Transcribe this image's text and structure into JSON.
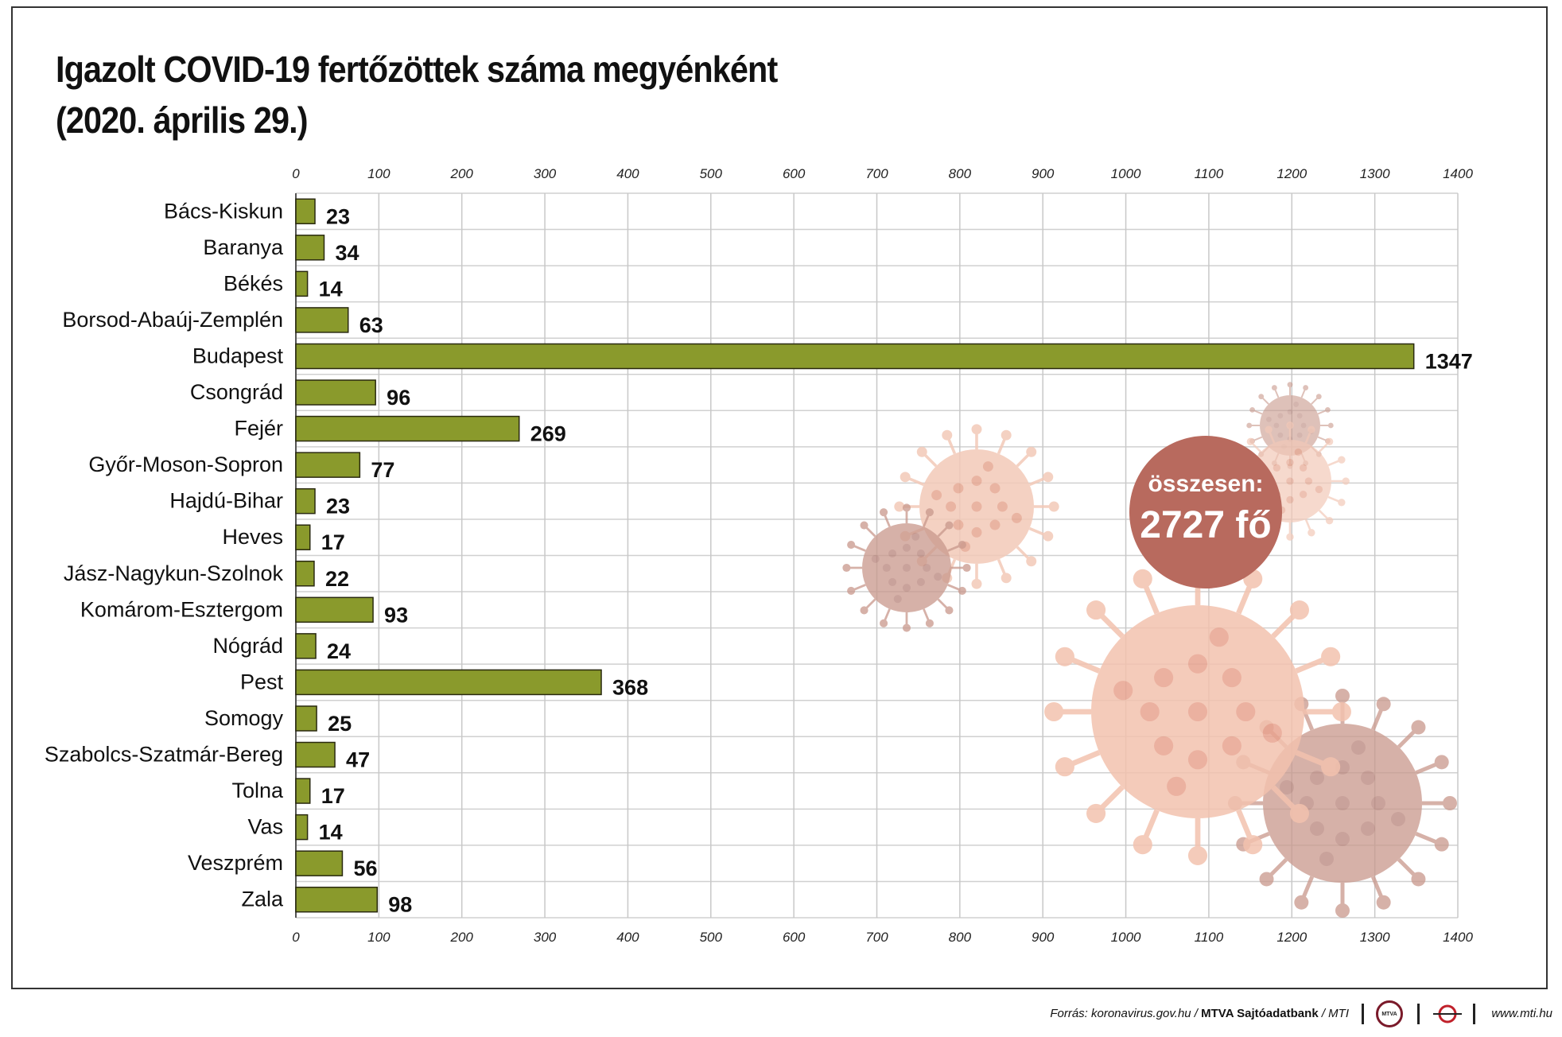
{
  "title_line1": "Igazolt COVID-19 fertőzöttek száma megyénként",
  "title_line2": "(2020. április 29.)",
  "total_label": "összesen:",
  "total_value": "2727 fő",
  "footer": {
    "source_prefix": "Forrás: koronavirus.gov.hu / ",
    "source_bold": "MTVA Sajtóadatbank",
    "source_suffix": " / MTI",
    "logo_text": "MTVA",
    "url": "www.mti.hu"
  },
  "colors": {
    "bar": "#8a9a2c",
    "bar_stroke": "#2a2a10",
    "bubble": "#b86a5e",
    "virus_light": "#f0b8a2",
    "virus_dark": "#d49a8a"
  },
  "chart_data": {
    "type": "bar",
    "orientation": "horizontal",
    "categories": [
      "Bács-Kiskun",
      "Baranya",
      "Békés",
      "Borsod-Abaúj-Zemplén",
      "Budapest",
      "Csongrád",
      "Fejér",
      "Győr-Moson-Sopron",
      "Hajdú-Bihar",
      "Heves",
      "Jász-Nagykun-Szolnok",
      "Komárom-Esztergom",
      "Nógrád",
      "Pest",
      "Somogy",
      "Szabolcs-Szatmár-Bereg",
      "Tolna",
      "Vas",
      "Veszprém",
      "Zala"
    ],
    "values": [
      23,
      34,
      14,
      63,
      1347,
      96,
      269,
      77,
      23,
      17,
      22,
      93,
      24,
      368,
      25,
      47,
      17,
      14,
      56,
      98
    ],
    "xlim": [
      0,
      1400
    ],
    "ticks": [
      0,
      100,
      200,
      300,
      400,
      500,
      600,
      700,
      800,
      900,
      1000,
      1100,
      1200,
      1300,
      1400
    ],
    "tick_labels": [
      "0",
      "100",
      "200",
      "300",
      "400",
      "500",
      "600",
      "700",
      "800",
      "900",
      "1000",
      "1100",
      "1200",
      "1300",
      "1400"
    ],
    "axis_positions": "top and bottom",
    "grid": true
  }
}
